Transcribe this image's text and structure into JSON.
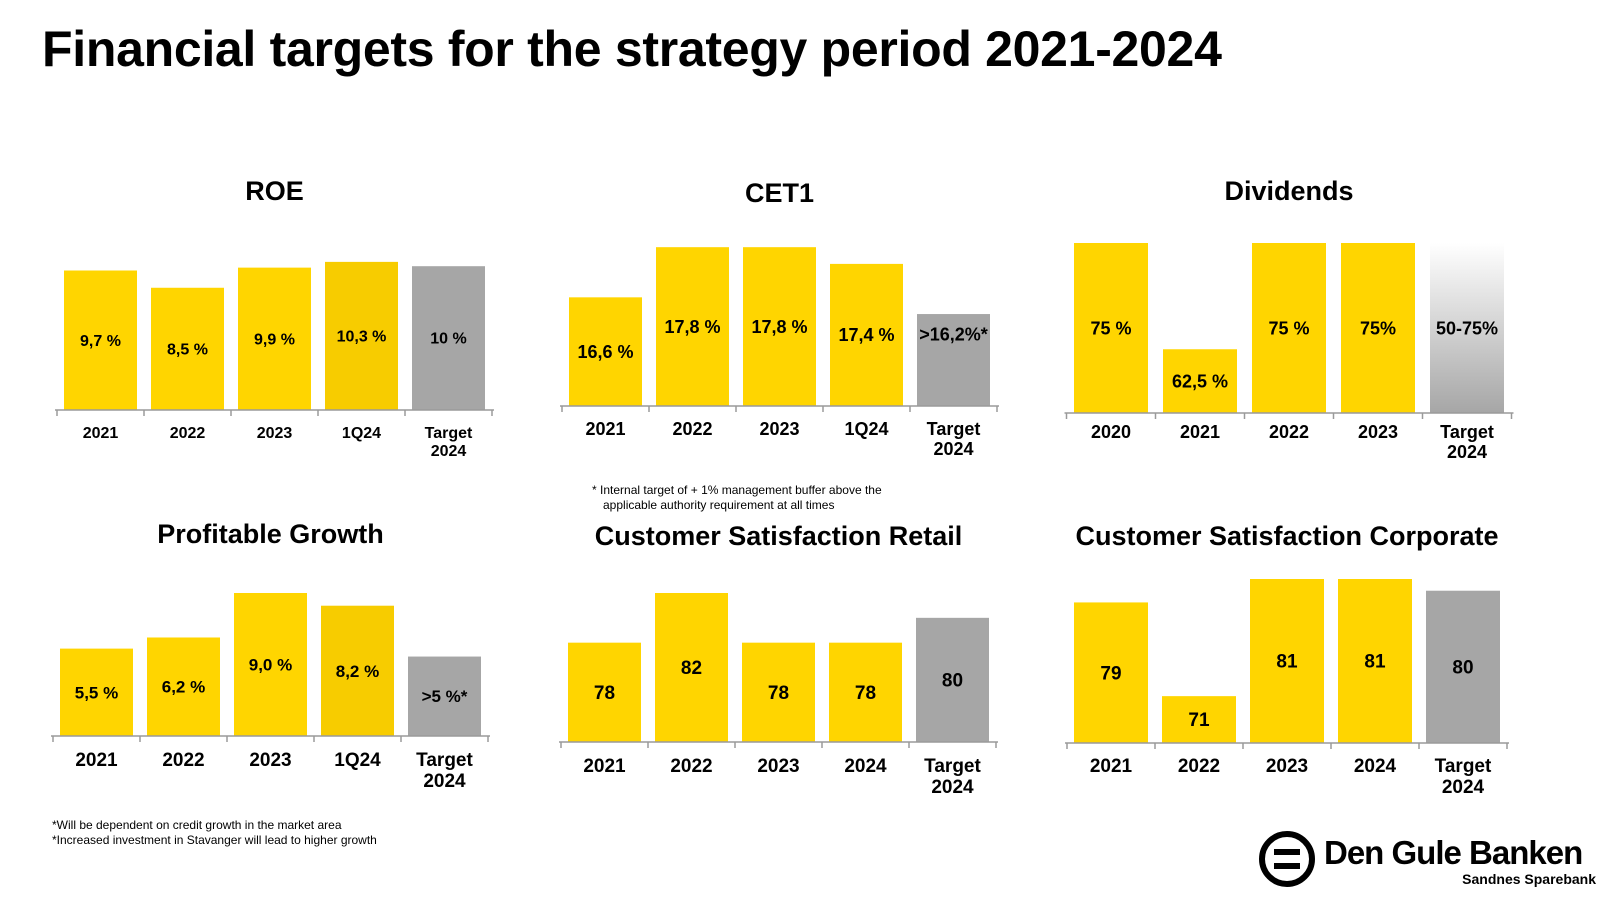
{
  "page": {
    "title": "Financial targets for the strategy period 2021-2024"
  },
  "colors": {
    "actual": "#ffd500",
    "highlight": "#f7cc00",
    "target": "#a6a6a6",
    "axis": "#9a9a9a"
  },
  "chart_data": [
    {
      "id": "roe",
      "type": "bar",
      "title": "ROE",
      "categories": [
        "2021",
        "2022",
        "2023",
        "1Q24",
        "Target\n2024"
      ],
      "values": [
        9.7,
        8.5,
        9.9,
        10.3,
        10
      ],
      "labels": [
        "9,7 %",
        "8,5 %",
        "9,9 %",
        "10,3 %",
        "10 %"
      ],
      "kinds": [
        "actual",
        "actual",
        "actual",
        "highlight",
        "target"
      ],
      "ylim": [
        0,
        10.5
      ]
    },
    {
      "id": "cet1",
      "type": "bar",
      "title": "CET1",
      "categories": [
        "2021",
        "2022",
        "2023",
        "1Q24",
        "Target\n2024"
      ],
      "values": [
        16.6,
        17.8,
        17.8,
        17.4,
        16.2
      ],
      "labels": [
        "16,6 %",
        "17,8 %",
        "17,8 %",
        "17,4 %",
        ">16,2%*"
      ],
      "kinds": [
        "actual",
        "actual",
        "actual",
        "actual",
        "target"
      ],
      "ylim": [
        14.0,
        17.9
      ]
    },
    {
      "id": "dividends",
      "type": "bar",
      "title": "Dividends",
      "categories": [
        "2020",
        "2021",
        "2022",
        "2023",
        "Target\n2024"
      ],
      "values": [
        75,
        62.5,
        75,
        75,
        75
      ],
      "labels": [
        "75 %",
        "62,5 %",
        "75 %",
        "75%",
        "50-75%"
      ],
      "kinds": [
        "actual",
        "actual",
        "actual",
        "actual",
        "target-gradient"
      ],
      "ylim": [
        55,
        75
      ]
    },
    {
      "id": "profitable-growth",
      "type": "bar",
      "title": "Profitable Growth",
      "categories": [
        "2021",
        "2022",
        "2023",
        "1Q24",
        "Target\n2024"
      ],
      "values": [
        5.5,
        6.2,
        9.0,
        8.2,
        5
      ],
      "labels": [
        "5,5 %",
        "6,2 %",
        "9,0 %",
        "8,2 %",
        ">5 %*"
      ],
      "kinds": [
        "actual",
        "actual",
        "actual",
        "highlight",
        "target"
      ],
      "ylim": [
        0,
        9.0
      ]
    },
    {
      "id": "cs-retail",
      "type": "bar",
      "title": "Customer Satisfaction Retail",
      "categories": [
        "2021",
        "2022",
        "2023",
        "2024",
        "Target\n2024"
      ],
      "values": [
        78,
        82,
        78,
        78,
        80
      ],
      "labels": [
        "78",
        "82",
        "78",
        "78",
        "80"
      ],
      "kinds": [
        "actual",
        "actual",
        "actual",
        "actual",
        "target"
      ],
      "ylim": [
        70,
        82
      ]
    },
    {
      "id": "cs-corporate",
      "type": "bar",
      "title": "Customer Satisfaction Corporate",
      "categories": [
        "2021",
        "2022",
        "2023",
        "2024",
        "Target\n2024"
      ],
      "values": [
        79,
        71,
        81,
        81,
        80
      ],
      "labels": [
        "79",
        "71",
        "81",
        "81",
        "80"
      ],
      "kinds": [
        "actual",
        "actual",
        "actual",
        "actual",
        "target"
      ],
      "ylim": [
        67,
        81
      ]
    }
  ],
  "footnotes": {
    "cet1": [
      "* Internal target of + 1% management buffer above the",
      "applicable authority requirement at all times"
    ],
    "growth": [
      "*Will be dependent on credit growth in the market area",
      "*Increased investment in Stavanger will lead to higher growth"
    ]
  },
  "logo": {
    "name": "Den Gule Banken",
    "subtitle": "Sandnes Sparebank",
    "icon": "bank-equals-icon"
  }
}
